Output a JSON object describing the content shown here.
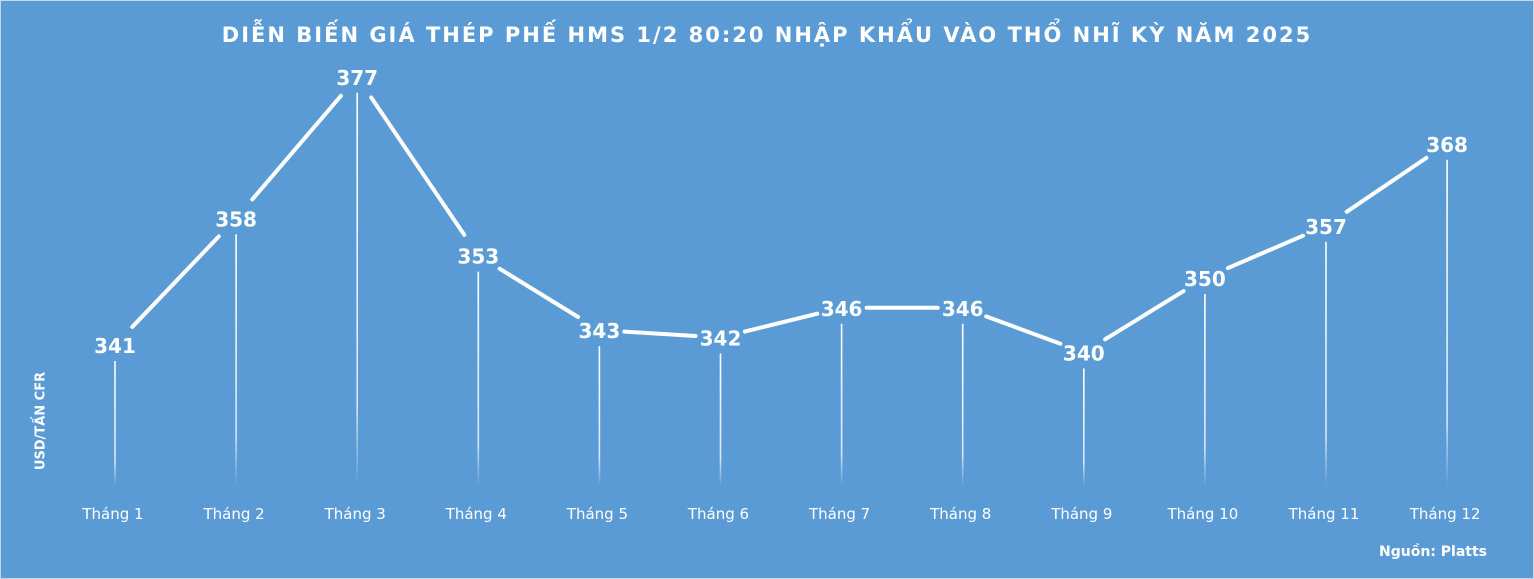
{
  "chart_data": {
    "type": "line",
    "title": "DIỄN BIẾN GIÁ THÉP PHẾ HMS 1/2 80:20 NHẬP KHẨU VÀO THỔ NHĨ KỲ NĂM 2025",
    "xlabel": "",
    "ylabel": "USD/TẤN CFR",
    "categories": [
      "Tháng 1",
      "Tháng 2",
      "Tháng 3",
      "Tháng 4",
      "Tháng 5",
      "Tháng 6",
      "Tháng 7",
      "Tháng 8",
      "Tháng 9",
      "Tháng 10",
      "Tháng 11",
      "Tháng 12"
    ],
    "series": [
      {
        "values": [
          341,
          358,
          377,
          353,
          343,
          342,
          346,
          346,
          340,
          350,
          357,
          368
        ]
      }
    ],
    "grid": false,
    "legend": "none",
    "colors": {
      "background": "#5b9bd5",
      "line": "#ffffff",
      "text": "#ffffff"
    }
  },
  "source": "Nguồn: Platts"
}
